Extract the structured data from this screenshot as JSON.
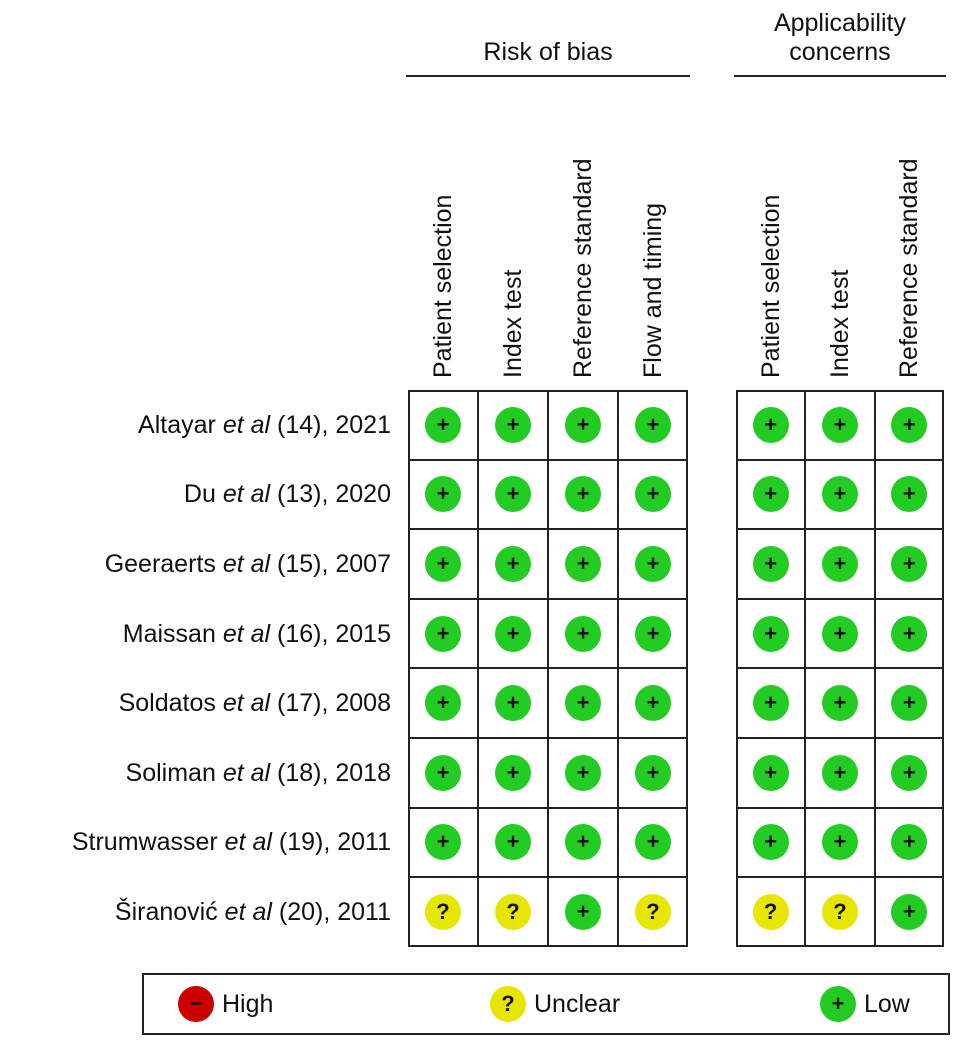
{
  "chart_data": {
    "type": "table",
    "groups": [
      {
        "title": [
          "Risk of bias"
        ],
        "columns": [
          "Patient selection",
          "Index test",
          "Reference standard",
          "Flow and timing"
        ]
      },
      {
        "title": [
          "Applicability",
          "concerns"
        ],
        "columns": [
          "Patient selection",
          "Index test",
          "Reference standard"
        ]
      }
    ],
    "studies": [
      {
        "author": "Altayar",
        "etal": "et al",
        "ref": "(14), 2021",
        "ratings": [
          "low",
          "low",
          "low",
          "low",
          "low",
          "low",
          "low"
        ]
      },
      {
        "author": "Du",
        "etal": "et al",
        "ref": "(13), 2020",
        "ratings": [
          "low",
          "low",
          "low",
          "low",
          "low",
          "low",
          "low"
        ]
      },
      {
        "author": "Geeraerts",
        "etal": "et al",
        "ref": "(15), 2007",
        "ratings": [
          "low",
          "low",
          "low",
          "low",
          "low",
          "low",
          "low"
        ]
      },
      {
        "author": "Maissan",
        "etal": "et al",
        "ref": "(16), 2015",
        "ratings": [
          "low",
          "low",
          "low",
          "low",
          "low",
          "low",
          "low"
        ]
      },
      {
        "author": "Soldatos",
        "etal": "et al",
        "ref": "(17), 2008",
        "ratings": [
          "low",
          "low",
          "low",
          "low",
          "low",
          "low",
          "low"
        ]
      },
      {
        "author": "Soliman",
        "etal": "et al",
        "ref": "(18), 2018",
        "ratings": [
          "low",
          "low",
          "low",
          "low",
          "low",
          "low",
          "low"
        ]
      },
      {
        "author": "Strumwasser",
        "etal": "et al",
        "ref": "(19), 2011",
        "ratings": [
          "low",
          "low",
          "low",
          "low",
          "low",
          "low",
          "low"
        ]
      },
      {
        "author": "Širanović",
        "etal": "et al",
        "ref": "(20), 2011",
        "ratings": [
          "unclear",
          "unclear",
          "low",
          "unclear",
          "unclear",
          "unclear",
          "low"
        ]
      }
    ],
    "legend": [
      {
        "key": "high",
        "label": "High",
        "symbol": "−",
        "color": "#cc0000"
      },
      {
        "key": "unclear",
        "label": "Unclear",
        "symbol": "?",
        "color": "#e6e600"
      },
      {
        "key": "low",
        "label": "Low",
        "symbol": "+",
        "color": "#22cc22"
      }
    ]
  }
}
